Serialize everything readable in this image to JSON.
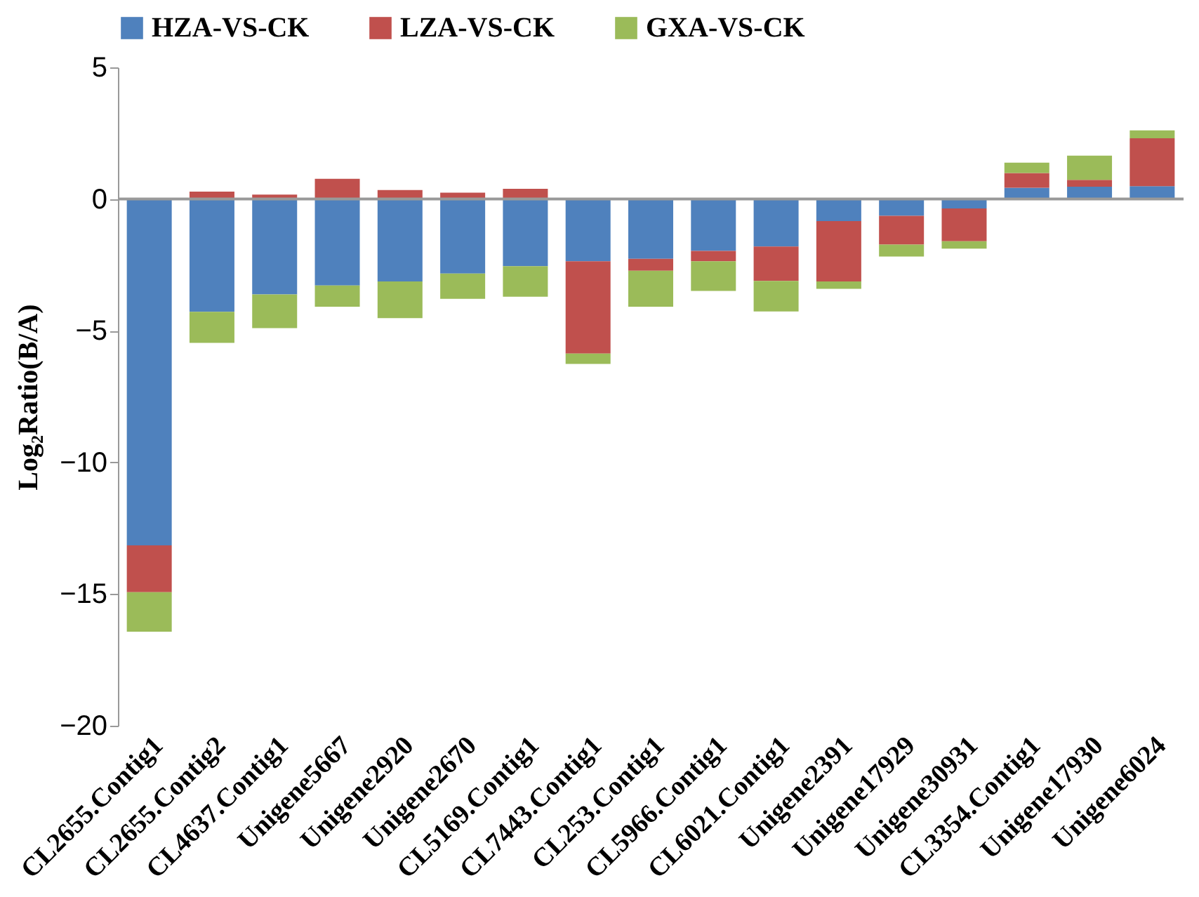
{
  "chart_data": {
    "type": "bar",
    "stacked": true,
    "ylabel": "Log₂Ratio(B/A)",
    "categories": [
      "CL2655.Contig1",
      "CL2655.Contig2",
      "CL4637.Contig1",
      "Unigene5667",
      "Unigene2920",
      "Unigene2670",
      "CL5169.Contig1",
      "CL7443.Contig1",
      "CL253.Contig1",
      "CL5966.Contig1",
      "CL6021.Contig1",
      "Unigene2391",
      "Unigene17929",
      "Unigene30931",
      "CL3354.Contig1",
      "Unigene17930",
      "Unigene6024"
    ],
    "series": [
      {
        "name": "HZA-VS-CK",
        "color": "#4f81bd",
        "values": [
          -13.15,
          -4.28,
          -3.62,
          -3.28,
          -3.13,
          -2.83,
          -2.55,
          -2.36,
          -2.27,
          -1.97,
          -1.8,
          -0.84,
          -0.64,
          -0.36,
          0.43,
          0.47,
          0.49
        ]
      },
      {
        "name": "LZA-VS-CK",
        "color": "#c0504d",
        "values": [
          -1.78,
          0.28,
          0.17,
          0.77,
          0.34,
          0.24,
          0.39,
          -3.51,
          -0.45,
          -0.39,
          -1.31,
          -2.29,
          -1.09,
          -1.24,
          0.56,
          0.26,
          1.82
        ]
      },
      {
        "name": "GXA-VS-CK",
        "color": "#9bbb59",
        "values": [
          -1.5,
          -1.18,
          -1.28,
          -0.81,
          -1.39,
          -0.96,
          -1.16,
          -0.39,
          -1.37,
          -1.13,
          -1.16,
          -0.28,
          -0.45,
          -0.28,
          0.39,
          0.92,
          0.3
        ]
      }
    ],
    "ylim": [
      -20,
      5
    ],
    "yticks": [
      -20,
      -15,
      -10,
      -5,
      0,
      5
    ],
    "grid": false,
    "legend": "top",
    "ref_lines": [
      {
        "axis": "y",
        "value": 0,
        "color": "#999999"
      }
    ]
  }
}
